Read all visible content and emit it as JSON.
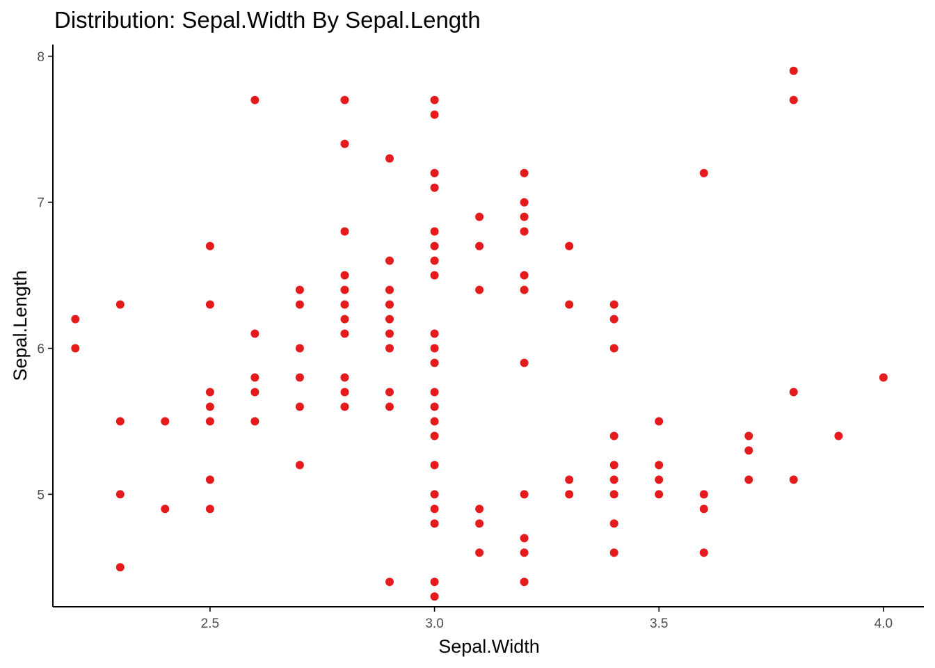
{
  "chart_data": {
    "type": "scatter",
    "title": "Distribution: Sepal.Width By Sepal.Length",
    "xlabel": "Sepal.Width",
    "ylabel": "Sepal.Length",
    "xlim": [
      2.15,
      4.09
    ],
    "ylim": [
      4.23,
      8.08
    ],
    "xticks": [
      2.5,
      3.0,
      3.5,
      4.0
    ],
    "xtick_labels": [
      "2.5",
      "3.0",
      "3.5",
      "4.0"
    ],
    "yticks": [
      5,
      6,
      7,
      8
    ],
    "ytick_labels": [
      "5",
      "6",
      "7",
      "8"
    ],
    "grid": false,
    "legend": "none",
    "point_color": "#e41a1c",
    "points": [
      {
        "x": 2.2,
        "y": 6.2
      },
      {
        "x": 2.2,
        "y": 6.0
      },
      {
        "x": 2.3,
        "y": 6.3
      },
      {
        "x": 2.3,
        "y": 5.5
      },
      {
        "x": 2.3,
        "y": 5.0
      },
      {
        "x": 2.3,
        "y": 4.5
      },
      {
        "x": 2.4,
        "y": 5.5
      },
      {
        "x": 2.4,
        "y": 4.9
      },
      {
        "x": 2.5,
        "y": 6.7
      },
      {
        "x": 2.5,
        "y": 6.3
      },
      {
        "x": 2.5,
        "y": 5.7
      },
      {
        "x": 2.5,
        "y": 5.6
      },
      {
        "x": 2.5,
        "y": 5.5
      },
      {
        "x": 2.5,
        "y": 5.1
      },
      {
        "x": 2.5,
        "y": 4.9
      },
      {
        "x": 2.6,
        "y": 7.7
      },
      {
        "x": 2.6,
        "y": 6.1
      },
      {
        "x": 2.6,
        "y": 5.8
      },
      {
        "x": 2.6,
        "y": 5.7
      },
      {
        "x": 2.6,
        "y": 5.5
      },
      {
        "x": 2.7,
        "y": 6.4
      },
      {
        "x": 2.7,
        "y": 6.3
      },
      {
        "x": 2.7,
        "y": 6.0
      },
      {
        "x": 2.7,
        "y": 5.8
      },
      {
        "x": 2.7,
        "y": 5.6
      },
      {
        "x": 2.7,
        "y": 5.2
      },
      {
        "x": 2.8,
        "y": 7.7
      },
      {
        "x": 2.8,
        "y": 7.4
      },
      {
        "x": 2.8,
        "y": 6.8
      },
      {
        "x": 2.8,
        "y": 6.5
      },
      {
        "x": 2.8,
        "y": 6.4
      },
      {
        "x": 2.8,
        "y": 6.3
      },
      {
        "x": 2.8,
        "y": 6.2
      },
      {
        "x": 2.8,
        "y": 6.1
      },
      {
        "x": 2.8,
        "y": 5.8
      },
      {
        "x": 2.8,
        "y": 5.7
      },
      {
        "x": 2.8,
        "y": 5.6
      },
      {
        "x": 2.9,
        "y": 7.3
      },
      {
        "x": 2.9,
        "y": 6.6
      },
      {
        "x": 2.9,
        "y": 6.4
      },
      {
        "x": 2.9,
        "y": 6.3
      },
      {
        "x": 2.9,
        "y": 6.2
      },
      {
        "x": 2.9,
        "y": 6.1
      },
      {
        "x": 2.9,
        "y": 6.0
      },
      {
        "x": 2.9,
        "y": 5.7
      },
      {
        "x": 2.9,
        "y": 5.6
      },
      {
        "x": 2.9,
        "y": 4.4
      },
      {
        "x": 3.0,
        "y": 7.7
      },
      {
        "x": 3.0,
        "y": 7.6
      },
      {
        "x": 3.0,
        "y": 7.2
      },
      {
        "x": 3.0,
        "y": 7.1
      },
      {
        "x": 3.0,
        "y": 6.8
      },
      {
        "x": 3.0,
        "y": 6.7
      },
      {
        "x": 3.0,
        "y": 6.6
      },
      {
        "x": 3.0,
        "y": 6.5
      },
      {
        "x": 3.0,
        "y": 6.1
      },
      {
        "x": 3.0,
        "y": 6.0
      },
      {
        "x": 3.0,
        "y": 5.9
      },
      {
        "x": 3.0,
        "y": 5.7
      },
      {
        "x": 3.0,
        "y": 5.6
      },
      {
        "x": 3.0,
        "y": 5.5
      },
      {
        "x": 3.0,
        "y": 5.4
      },
      {
        "x": 3.0,
        "y": 5.2
      },
      {
        "x": 3.0,
        "y": 5.0
      },
      {
        "x": 3.0,
        "y": 4.9
      },
      {
        "x": 3.0,
        "y": 4.8
      },
      {
        "x": 3.0,
        "y": 4.4
      },
      {
        "x": 3.0,
        "y": 4.3
      },
      {
        "x": 3.1,
        "y": 6.9
      },
      {
        "x": 3.1,
        "y": 6.7
      },
      {
        "x": 3.1,
        "y": 6.4
      },
      {
        "x": 3.1,
        "y": 4.9
      },
      {
        "x": 3.1,
        "y": 4.8
      },
      {
        "x": 3.1,
        "y": 4.6
      },
      {
        "x": 3.2,
        "y": 7.2
      },
      {
        "x": 3.2,
        "y": 7.0
      },
      {
        "x": 3.2,
        "y": 6.9
      },
      {
        "x": 3.2,
        "y": 6.8
      },
      {
        "x": 3.2,
        "y": 6.5
      },
      {
        "x": 3.2,
        "y": 6.4
      },
      {
        "x": 3.2,
        "y": 5.9
      },
      {
        "x": 3.2,
        "y": 5.0
      },
      {
        "x": 3.2,
        "y": 4.7
      },
      {
        "x": 3.2,
        "y": 4.6
      },
      {
        "x": 3.2,
        "y": 4.4
      },
      {
        "x": 3.3,
        "y": 6.7
      },
      {
        "x": 3.3,
        "y": 6.3
      },
      {
        "x": 3.3,
        "y": 5.1
      },
      {
        "x": 3.3,
        "y": 5.0
      },
      {
        "x": 3.4,
        "y": 6.3
      },
      {
        "x": 3.4,
        "y": 6.2
      },
      {
        "x": 3.4,
        "y": 6.0
      },
      {
        "x": 3.4,
        "y": 5.4
      },
      {
        "x": 3.4,
        "y": 5.2
      },
      {
        "x": 3.4,
        "y": 5.1
      },
      {
        "x": 3.4,
        "y": 5.0
      },
      {
        "x": 3.4,
        "y": 4.8
      },
      {
        "x": 3.4,
        "y": 4.6
      },
      {
        "x": 3.5,
        "y": 5.5
      },
      {
        "x": 3.5,
        "y": 5.2
      },
      {
        "x": 3.5,
        "y": 5.1
      },
      {
        "x": 3.5,
        "y": 5.0
      },
      {
        "x": 3.6,
        "y": 7.2
      },
      {
        "x": 3.6,
        "y": 5.0
      },
      {
        "x": 3.6,
        "y": 4.9
      },
      {
        "x": 3.6,
        "y": 4.6
      },
      {
        "x": 3.7,
        "y": 5.4
      },
      {
        "x": 3.7,
        "y": 5.3
      },
      {
        "x": 3.7,
        "y": 5.1
      },
      {
        "x": 3.8,
        "y": 7.9
      },
      {
        "x": 3.8,
        "y": 7.7
      },
      {
        "x": 3.8,
        "y": 5.7
      },
      {
        "x": 3.8,
        "y": 5.1
      },
      {
        "x": 3.9,
        "y": 5.4
      },
      {
        "x": 4.0,
        "y": 5.8
      }
    ]
  }
}
